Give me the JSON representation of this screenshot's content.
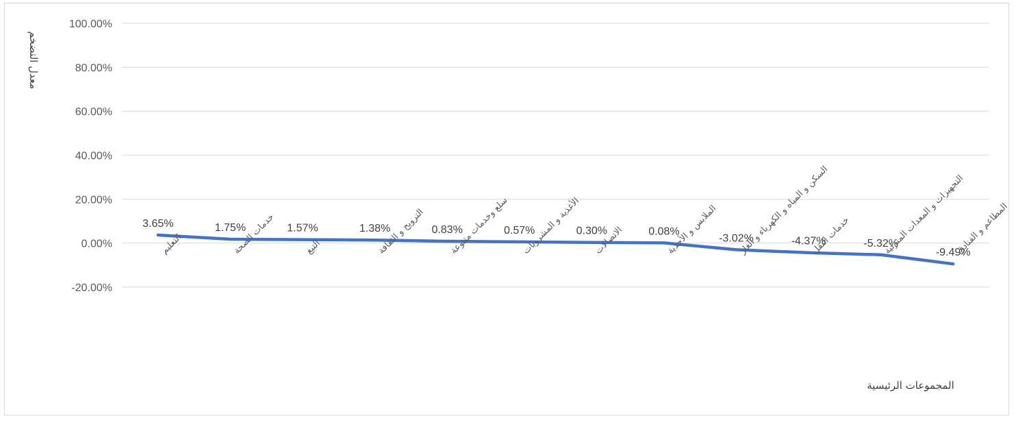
{
  "chart_data": {
    "type": "line",
    "title": "",
    "xlabel": "المجموعات الرئيسية",
    "ylabel": "معدل التضخم",
    "ylim": [
      -20,
      100
    ],
    "yticks": [
      -20,
      0,
      20,
      40,
      60,
      80,
      100
    ],
    "ytick_labels": [
      "-20.00%",
      "0.00%",
      "20.00%",
      "40.00%",
      "60.00%",
      "80.00%",
      "100.00%"
    ],
    "grid": true,
    "legend": "none",
    "categories": [
      "التعليم",
      "خدمات الصحة",
      "التبغ",
      "الترويح و الثقافة",
      "سلع وخدمات متنوعة",
      "الأغذية و المشروبات",
      "الاتصالات",
      "الملابس و الأحذية",
      "السكن و المياه و الكهرباء و الغاز",
      "خدمات النقل",
      "التجهيزات و المعدات المنزلية",
      "المطاعم و الفنادق"
    ],
    "series": [
      {
        "values": [
          3.65,
          1.75,
          1.57,
          1.38,
          0.83,
          0.57,
          0.3,
          0.08,
          -3.02,
          -4.37,
          -5.32,
          -9.49
        ],
        "labels": [
          "3.65%",
          "1.75%",
          "1.57%",
          "1.38%",
          "0.83%",
          "0.57%",
          "0.30%",
          "0.08%",
          "-3.02%",
          "-4.37%",
          "-5.32%",
          "-9.49%"
        ],
        "color": "#4472c4"
      }
    ]
  }
}
